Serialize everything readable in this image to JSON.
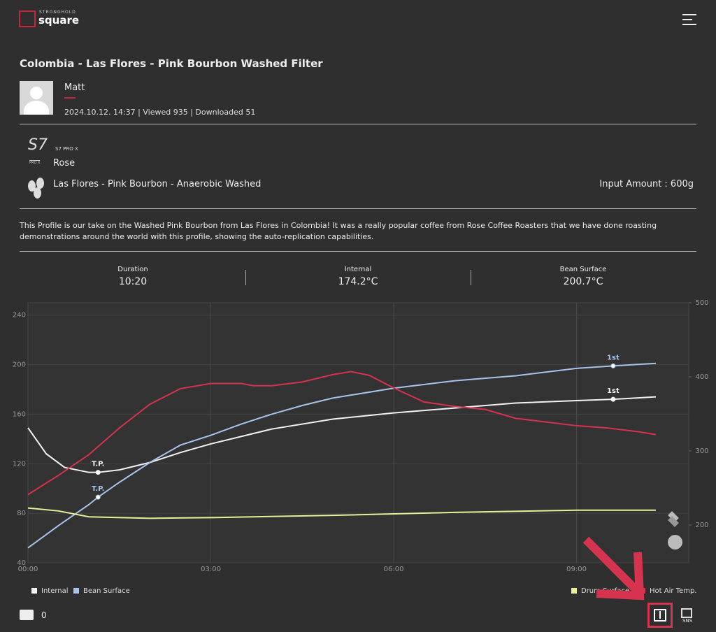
{
  "header": {
    "brand_top": "STRONGHOLD",
    "brand": "square"
  },
  "profile": {
    "title": "Colombia - Las Flores - Pink Bourbon Washed Filter",
    "author": "Matt",
    "meta": "2024.10.12. 14:37 | Viewed 935 | Downloaded 51",
    "machine_logo": "S7",
    "machine_logo_sub": "PRO X",
    "machine": "S7 PRO X",
    "roaster": "Rose",
    "bean": "Las Flores - Pink Bourbon - Anaerobic Washed",
    "input_amount": "Input Amount : 600g",
    "description": "This Profile is our take on the Washed Pink Bourbon from Las Flores in Colombia! It was a really popular coffee from Rose Coffee Roasters that we have done roasting demonstrations around the world with this profile, showing the auto-replication capabilities."
  },
  "stats": [
    {
      "label": "Duration",
      "value": "10:20"
    },
    {
      "label": "Internal",
      "value": "174.2°C"
    },
    {
      "label": "Bean Surface",
      "value": "200.7°C"
    }
  ],
  "chart_data": {
    "type": "line",
    "xlim": [
      0,
      10.84
    ],
    "xticks": [
      {
        "value": 0,
        "label": "00:00"
      },
      {
        "value": 3,
        "label": "03:00"
      },
      {
        "value": 6,
        "label": "06:00"
      },
      {
        "value": 9,
        "label": "09:00"
      }
    ],
    "ylim": [
      40,
      250
    ],
    "yticks": [
      40,
      80,
      120,
      160,
      200,
      240
    ],
    "y2lim": [
      149,
      500
    ],
    "y2ticks": [
      200,
      300,
      400,
      500
    ],
    "grid": true,
    "series": [
      {
        "name": "Internal",
        "color": "#f2f2f2",
        "x": [
          0,
          0.3,
          0.6,
          1,
          1.15,
          1.5,
          2,
          2.5,
          3,
          4,
          5,
          6,
          7,
          8,
          9,
          9.6,
          10.3
        ],
        "values": [
          149,
          128,
          117,
          113,
          113,
          115,
          121,
          129,
          136,
          148,
          156,
          161,
          165,
          169,
          171,
          172,
          174
        ],
        "markers": [
          {
            "x": 1.15,
            "label": "T.P."
          },
          {
            "x": 9.6,
            "label": "1st"
          }
        ]
      },
      {
        "name": "Bean Surface",
        "color": "#a9c4ea",
        "x": [
          0,
          0.5,
          1,
          1.15,
          1.5,
          2,
          2.5,
          3,
          3.5,
          4,
          4.5,
          5,
          6,
          7,
          8,
          9,
          9.6,
          10.3
        ],
        "values": [
          52,
          70,
          87,
          93,
          105,
          121,
          135,
          143,
          152,
          160,
          167,
          173,
          181,
          187,
          191,
          197,
          199,
          201
        ],
        "markers": [
          {
            "x": 1.15,
            "label": "T.P."
          },
          {
            "x": 9.6,
            "label": "1st"
          }
        ]
      },
      {
        "name": "Drum Surface",
        "color": "#e8ef9a",
        "axis": "y2",
        "x": [
          0,
          0.5,
          1,
          2,
          3,
          5,
          7,
          9,
          10.3
        ],
        "values": [
          223,
          219,
          211,
          209,
          210,
          213,
          217,
          220,
          220
        ]
      },
      {
        "name": "Hot Air Temp.",
        "color": "#d6334f",
        "axis": "y2",
        "x": [
          0,
          0.5,
          1,
          1.5,
          2,
          2.5,
          3,
          3.5,
          3.7,
          4,
          4.5,
          5,
          5.3,
          5.6,
          6,
          6.5,
          7,
          7.5,
          8,
          8.5,
          9,
          9.5,
          10,
          10.3
        ],
        "values": [
          241,
          267,
          295,
          331,
          363,
          384,
          391,
          391,
          388,
          388,
          393,
          403,
          407,
          402,
          385,
          366,
          360,
          356,
          344,
          339,
          334,
          331,
          326,
          322
        ]
      }
    ]
  },
  "footer": {
    "comments": 0,
    "sns": "SNS"
  }
}
